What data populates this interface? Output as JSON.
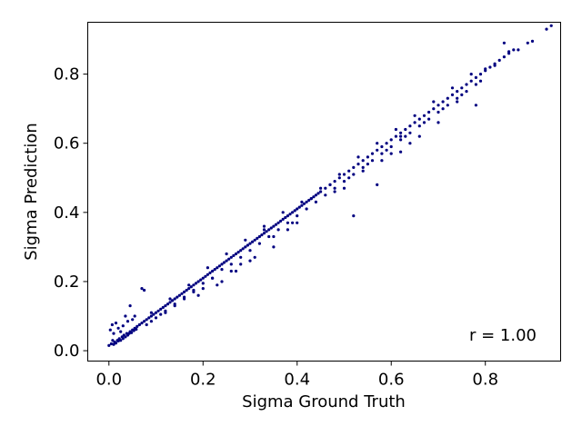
{
  "chart_data": {
    "type": "scatter",
    "title": "",
    "xlabel": "Sigma Ground Truth",
    "ylabel": "Sigma Prediction",
    "xlim": [
      -0.045,
      0.96
    ],
    "ylim": [
      -0.03,
      0.95
    ],
    "xticks": [
      0.0,
      0.2,
      0.4,
      0.6,
      0.8
    ],
    "yticks": [
      0.0,
      0.2,
      0.4,
      0.6,
      0.8
    ],
    "xtick_labels": [
      "0.0",
      "0.2",
      "0.4",
      "0.6",
      "0.8"
    ],
    "ytick_labels": [
      "0.0",
      "0.2",
      "0.4",
      "0.6",
      "0.8"
    ],
    "grid": false,
    "legend": "none",
    "marker_color": "#000080",
    "annotation": "r = 1.00",
    "series": [
      {
        "points": [
          [
            0.0,
            0.015
          ],
          [
            0.005,
            0.02
          ],
          [
            0.008,
            0.03
          ],
          [
            0.01,
            0.018
          ],
          [
            0.012,
            0.025
          ],
          [
            0.015,
            0.022
          ],
          [
            0.018,
            0.03
          ],
          [
            0.02,
            0.028
          ],
          [
            0.022,
            0.035
          ],
          [
            0.025,
            0.03
          ],
          [
            0.028,
            0.04
          ],
          [
            0.03,
            0.035
          ],
          [
            0.032,
            0.045
          ],
          [
            0.035,
            0.04
          ],
          [
            0.038,
            0.05
          ],
          [
            0.04,
            0.045
          ],
          [
            0.043,
            0.05
          ],
          [
            0.045,
            0.055
          ],
          [
            0.048,
            0.052
          ],
          [
            0.05,
            0.06
          ],
          [
            0.053,
            0.058
          ],
          [
            0.055,
            0.065
          ],
          [
            0.058,
            0.062
          ],
          [
            0.06,
            0.07
          ],
          [
            0.003,
            0.06
          ],
          [
            0.007,
            0.075
          ],
          [
            0.01,
            0.05
          ],
          [
            0.015,
            0.08
          ],
          [
            0.02,
            0.065
          ],
          [
            0.025,
            0.055
          ],
          [
            0.03,
            0.072
          ],
          [
            0.035,
            0.1
          ],
          [
            0.04,
            0.085
          ],
          [
            0.045,
            0.13
          ],
          [
            0.05,
            0.09
          ],
          [
            0.055,
            0.1
          ],
          [
            0.07,
            0.18
          ],
          [
            0.075,
            0.175
          ],
          [
            0.065,
            0.075
          ],
          [
            0.07,
            0.08
          ],
          [
            0.075,
            0.085
          ],
          [
            0.08,
            0.09
          ],
          [
            0.085,
            0.095
          ],
          [
            0.09,
            0.1
          ],
          [
            0.095,
            0.105
          ],
          [
            0.1,
            0.11
          ],
          [
            0.105,
            0.115
          ],
          [
            0.11,
            0.12
          ],
          [
            0.115,
            0.125
          ],
          [
            0.12,
            0.13
          ],
          [
            0.125,
            0.135
          ],
          [
            0.13,
            0.14
          ],
          [
            0.135,
            0.145
          ],
          [
            0.14,
            0.15
          ],
          [
            0.145,
            0.155
          ],
          [
            0.15,
            0.16
          ],
          [
            0.155,
            0.165
          ],
          [
            0.16,
            0.17
          ],
          [
            0.165,
            0.175
          ],
          [
            0.17,
            0.18
          ],
          [
            0.175,
            0.185
          ],
          [
            0.18,
            0.19
          ],
          [
            0.185,
            0.195
          ],
          [
            0.19,
            0.2
          ],
          [
            0.195,
            0.205
          ],
          [
            0.2,
            0.21
          ],
          [
            0.205,
            0.215
          ],
          [
            0.21,
            0.22
          ],
          [
            0.215,
            0.225
          ],
          [
            0.22,
            0.23
          ],
          [
            0.225,
            0.235
          ],
          [
            0.23,
            0.24
          ],
          [
            0.235,
            0.245
          ],
          [
            0.24,
            0.25
          ],
          [
            0.245,
            0.255
          ],
          [
            0.25,
            0.26
          ],
          [
            0.255,
            0.265
          ],
          [
            0.26,
            0.27
          ],
          [
            0.265,
            0.275
          ],
          [
            0.27,
            0.28
          ],
          [
            0.275,
            0.285
          ],
          [
            0.28,
            0.29
          ],
          [
            0.285,
            0.295
          ],
          [
            0.29,
            0.3
          ],
          [
            0.295,
            0.305
          ],
          [
            0.3,
            0.31
          ],
          [
            0.305,
            0.315
          ],
          [
            0.31,
            0.32
          ],
          [
            0.315,
            0.325
          ],
          [
            0.32,
            0.33
          ],
          [
            0.325,
            0.335
          ],
          [
            0.33,
            0.34
          ],
          [
            0.335,
            0.345
          ],
          [
            0.34,
            0.35
          ],
          [
            0.345,
            0.355
          ],
          [
            0.35,
            0.36
          ],
          [
            0.355,
            0.365
          ],
          [
            0.36,
            0.37
          ],
          [
            0.365,
            0.375
          ],
          [
            0.37,
            0.38
          ],
          [
            0.375,
            0.385
          ],
          [
            0.38,
            0.39
          ],
          [
            0.385,
            0.395
          ],
          [
            0.39,
            0.4
          ],
          [
            0.395,
            0.405
          ],
          [
            0.4,
            0.41
          ],
          [
            0.405,
            0.415
          ],
          [
            0.41,
            0.42
          ],
          [
            0.415,
            0.425
          ],
          [
            0.42,
            0.43
          ],
          [
            0.425,
            0.435
          ],
          [
            0.43,
            0.44
          ],
          [
            0.435,
            0.445
          ],
          [
            0.44,
            0.45
          ],
          [
            0.445,
            0.455
          ],
          [
            0.45,
            0.46
          ],
          [
            0.46,
            0.47
          ],
          [
            0.47,
            0.48
          ],
          [
            0.48,
            0.49
          ],
          [
            0.49,
            0.5
          ],
          [
            0.5,
            0.51
          ],
          [
            0.51,
            0.52
          ],
          [
            0.52,
            0.53
          ],
          [
            0.53,
            0.54
          ],
          [
            0.54,
            0.55
          ],
          [
            0.55,
            0.56
          ],
          [
            0.56,
            0.57
          ],
          [
            0.57,
            0.58
          ],
          [
            0.58,
            0.59
          ],
          [
            0.59,
            0.6
          ],
          [
            0.6,
            0.61
          ],
          [
            0.61,
            0.62
          ],
          [
            0.62,
            0.63
          ],
          [
            0.63,
            0.64
          ],
          [
            0.64,
            0.65
          ],
          [
            0.65,
            0.66
          ],
          [
            0.66,
            0.67
          ],
          [
            0.67,
            0.68
          ],
          [
            0.68,
            0.69
          ],
          [
            0.69,
            0.7
          ],
          [
            0.7,
            0.71
          ],
          [
            0.71,
            0.72
          ],
          [
            0.72,
            0.73
          ],
          [
            0.73,
            0.74
          ],
          [
            0.74,
            0.75
          ],
          [
            0.75,
            0.76
          ],
          [
            0.76,
            0.77
          ],
          [
            0.77,
            0.78
          ],
          [
            0.78,
            0.79
          ],
          [
            0.79,
            0.8
          ],
          [
            0.8,
            0.81
          ],
          [
            0.81,
            0.82
          ],
          [
            0.82,
            0.83
          ],
          [
            0.83,
            0.84
          ],
          [
            0.84,
            0.85
          ],
          [
            0.85,
            0.86
          ],
          [
            0.86,
            0.87
          ],
          [
            0.87,
            0.87
          ],
          [
            0.89,
            0.89
          ],
          [
            0.9,
            0.895
          ],
          [
            0.93,
            0.93
          ],
          [
            0.94,
            0.94
          ],
          [
            0.84,
            0.89
          ],
          [
            0.85,
            0.865
          ],
          [
            0.82,
            0.825
          ],
          [
            0.8,
            0.815
          ],
          [
            0.08,
            0.075
          ],
          [
            0.1,
            0.095
          ],
          [
            0.12,
            0.115
          ],
          [
            0.14,
            0.135
          ],
          [
            0.16,
            0.155
          ],
          [
            0.18,
            0.175
          ],
          [
            0.2,
            0.195
          ],
          [
            0.22,
            0.21
          ],
          [
            0.24,
            0.235
          ],
          [
            0.26,
            0.25
          ],
          [
            0.28,
            0.27
          ],
          [
            0.3,
            0.29
          ],
          [
            0.32,
            0.31
          ],
          [
            0.34,
            0.33
          ],
          [
            0.36,
            0.35
          ],
          [
            0.38,
            0.37
          ],
          [
            0.4,
            0.39
          ],
          [
            0.42,
            0.41
          ],
          [
            0.44,
            0.43
          ],
          [
            0.46,
            0.45
          ],
          [
            0.48,
            0.47
          ],
          [
            0.5,
            0.49
          ],
          [
            0.52,
            0.51
          ],
          [
            0.54,
            0.53
          ],
          [
            0.56,
            0.55
          ],
          [
            0.58,
            0.57
          ],
          [
            0.6,
            0.59
          ],
          [
            0.62,
            0.61
          ],
          [
            0.64,
            0.63
          ],
          [
            0.66,
            0.65
          ],
          [
            0.68,
            0.67
          ],
          [
            0.7,
            0.69
          ],
          [
            0.72,
            0.71
          ],
          [
            0.74,
            0.73
          ],
          [
            0.76,
            0.75
          ],
          [
            0.78,
            0.77
          ],
          [
            0.09,
            0.11
          ],
          [
            0.13,
            0.15
          ],
          [
            0.17,
            0.19
          ],
          [
            0.21,
            0.24
          ],
          [
            0.25,
            0.28
          ],
          [
            0.29,
            0.32
          ],
          [
            0.33,
            0.36
          ],
          [
            0.37,
            0.4
          ],
          [
            0.41,
            0.43
          ],
          [
            0.45,
            0.47
          ],
          [
            0.49,
            0.51
          ],
          [
            0.53,
            0.56
          ],
          [
            0.57,
            0.6
          ],
          [
            0.61,
            0.64
          ],
          [
            0.65,
            0.68
          ],
          [
            0.69,
            0.72
          ],
          [
            0.73,
            0.76
          ],
          [
            0.77,
            0.8
          ],
          [
            0.19,
            0.16
          ],
          [
            0.23,
            0.19
          ],
          [
            0.27,
            0.23
          ],
          [
            0.31,
            0.27
          ],
          [
            0.35,
            0.3
          ],
          [
            0.39,
            0.37
          ],
          [
            0.43,
            0.44
          ],
          [
            0.47,
            0.48
          ],
          [
            0.51,
            0.5
          ],
          [
            0.55,
            0.54
          ],
          [
            0.59,
            0.58
          ],
          [
            0.63,
            0.62
          ],
          [
            0.67,
            0.66
          ],
          [
            0.71,
            0.7
          ],
          [
            0.75,
            0.74
          ],
          [
            0.79,
            0.78
          ],
          [
            0.6,
            0.57
          ],
          [
            0.62,
            0.575
          ],
          [
            0.64,
            0.6
          ],
          [
            0.66,
            0.62
          ],
          [
            0.7,
            0.66
          ],
          [
            0.74,
            0.72
          ],
          [
            0.78,
            0.71
          ],
          [
            0.5,
            0.47
          ],
          [
            0.54,
            0.52
          ],
          [
            0.58,
            0.55
          ],
          [
            0.62,
            0.62
          ],
          [
            0.52,
            0.39
          ],
          [
            0.57,
            0.48
          ],
          [
            0.48,
            0.46
          ],
          [
            0.4,
            0.37
          ],
          [
            0.38,
            0.35
          ],
          [
            0.35,
            0.33
          ],
          [
            0.33,
            0.35
          ],
          [
            0.3,
            0.26
          ],
          [
            0.28,
            0.25
          ],
          [
            0.26,
            0.23
          ],
          [
            0.24,
            0.2
          ],
          [
            0.22,
            0.21
          ],
          [
            0.2,
            0.18
          ],
          [
            0.18,
            0.17
          ],
          [
            0.16,
            0.15
          ],
          [
            0.14,
            0.13
          ],
          [
            0.12,
            0.11
          ],
          [
            0.11,
            0.105
          ],
          [
            0.09,
            0.085
          ]
        ]
      }
    ]
  }
}
